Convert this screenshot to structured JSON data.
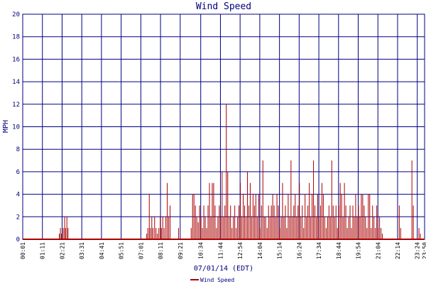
{
  "chart_data": {
    "type": "bar",
    "title": "Wind Speed",
    "xlabel": "07/01/14 (EDT)",
    "ylabel": "MPH",
    "ylim": [
      0,
      20
    ],
    "yticks": [
      0,
      2,
      4,
      6,
      8,
      10,
      12,
      14,
      16,
      18,
      20
    ],
    "xticks": [
      "00:01",
      "01:11",
      "02:21",
      "03:31",
      "04:41",
      "05:51",
      "07:01",
      "08:11",
      "09:21",
      "10:34",
      "11:44",
      "12:54",
      "14:04",
      "15:14",
      "16:24",
      "17:34",
      "18:44",
      "19:54",
      "21:04",
      "22:14",
      "23:24",
      "23:50"
    ],
    "grid": true,
    "legend": {
      "position": "bottom-left",
      "entries": [
        "Wind Speed"
      ]
    },
    "colors": {
      "series": "#aa0000",
      "grid": "#000080",
      "text": "#000080",
      "axis_text": "#000000"
    },
    "series": [
      {
        "name": "Wind Speed",
        "values": [
          {
            "t": "02:11",
            "v": 0.5
          },
          {
            "t": "02:15",
            "v": 1
          },
          {
            "t": "02:19",
            "v": 0.5
          },
          {
            "t": "02:25",
            "v": 1
          },
          {
            "t": "02:30",
            "v": 2
          },
          {
            "t": "02:33",
            "v": 1
          },
          {
            "t": "02:38",
            "v": 2
          },
          {
            "t": "02:42",
            "v": 1
          },
          {
            "t": "07:22",
            "v": 0.5
          },
          {
            "t": "07:26",
            "v": 1
          },
          {
            "t": "07:31",
            "v": 4
          },
          {
            "t": "07:35",
            "v": 1
          },
          {
            "t": "07:40",
            "v": 2
          },
          {
            "t": "07:44",
            "v": 1
          },
          {
            "t": "07:50",
            "v": 2
          },
          {
            "t": "07:55",
            "v": 1
          },
          {
            "t": "08:00",
            "v": 0.5
          },
          {
            "t": "08:05",
            "v": 1
          },
          {
            "t": "08:10",
            "v": 2
          },
          {
            "t": "08:14",
            "v": 1
          },
          {
            "t": "08:19",
            "v": 2
          },
          {
            "t": "08:24",
            "v": 1
          },
          {
            "t": "08:30",
            "v": 2
          },
          {
            "t": "08:35",
            "v": 5
          },
          {
            "t": "08:40",
            "v": 2
          },
          {
            "t": "08:45",
            "v": 3
          },
          {
            "t": "09:15",
            "v": 1
          },
          {
            "t": "10:00",
            "v": 1
          },
          {
            "t": "10:05",
            "v": 4
          },
          {
            "t": "10:10",
            "v": 4
          },
          {
            "t": "10:15",
            "v": 3
          },
          {
            "t": "10:20",
            "v": 2
          },
          {
            "t": "10:25",
            "v": 1.5
          },
          {
            "t": "10:30",
            "v": 3
          },
          {
            "t": "10:35",
            "v": 2
          },
          {
            "t": "10:40",
            "v": 1
          },
          {
            "t": "10:45",
            "v": 3
          },
          {
            "t": "10:50",
            "v": 2
          },
          {
            "t": "10:55",
            "v": 1
          },
          {
            "t": "11:00",
            "v": 3
          },
          {
            "t": "11:05",
            "v": 5
          },
          {
            "t": "11:10",
            "v": 2
          },
          {
            "t": "11:15",
            "v": 5
          },
          {
            "t": "11:20",
            "v": 5
          },
          {
            "t": "11:25",
            "v": 3
          },
          {
            "t": "11:30",
            "v": 1
          },
          {
            "t": "11:35",
            "v": 2
          },
          {
            "t": "11:40",
            "v": 3
          },
          {
            "t": "11:45",
            "v": 2
          },
          {
            "t": "11:50",
            "v": 6
          },
          {
            "t": "11:55",
            "v": 2
          },
          {
            "t": "12:00",
            "v": 3
          },
          {
            "t": "12:05",
            "v": 12
          },
          {
            "t": "12:10",
            "v": 6
          },
          {
            "t": "12:15",
            "v": 2
          },
          {
            "t": "12:20",
            "v": 3
          },
          {
            "t": "12:25",
            "v": 1
          },
          {
            "t": "12:30",
            "v": 2
          },
          {
            "t": "12:35",
            "v": 3
          },
          {
            "t": "12:40",
            "v": 1
          },
          {
            "t": "12:45",
            "v": 2
          },
          {
            "t": "12:50",
            "v": 3
          },
          {
            "t": "12:55",
            "v": 5
          },
          {
            "t": "13:00",
            "v": 2
          },
          {
            "t": "13:05",
            "v": 4
          },
          {
            "t": "13:10",
            "v": 3
          },
          {
            "t": "13:15",
            "v": 2
          },
          {
            "t": "13:20",
            "v": 6
          },
          {
            "t": "13:25",
            "v": 3
          },
          {
            "t": "13:30",
            "v": 5
          },
          {
            "t": "13:35",
            "v": 2
          },
          {
            "t": "13:40",
            "v": 4
          },
          {
            "t": "13:45",
            "v": 3
          },
          {
            "t": "13:50",
            "v": 4
          },
          {
            "t": "13:55",
            "v": 2
          },
          {
            "t": "14:00",
            "v": 4
          },
          {
            "t": "14:05",
            "v": 1
          },
          {
            "t": "14:10",
            "v": 3
          },
          {
            "t": "14:15",
            "v": 7
          },
          {
            "t": "14:20",
            "v": 2
          },
          {
            "t": "14:25",
            "v": 2
          },
          {
            "t": "14:30",
            "v": 1
          },
          {
            "t": "14:35",
            "v": 3
          },
          {
            "t": "14:40",
            "v": 2
          },
          {
            "t": "14:45",
            "v": 3
          },
          {
            "t": "14:50",
            "v": 4
          },
          {
            "t": "14:55",
            "v": 3
          },
          {
            "t": "15:00",
            "v": 2
          },
          {
            "t": "15:05",
            "v": 4
          },
          {
            "t": "15:10",
            "v": 3
          },
          {
            "t": "15:15",
            "v": 1
          },
          {
            "t": "15:20",
            "v": 2
          },
          {
            "t": "15:25",
            "v": 5
          },
          {
            "t": "15:30",
            "v": 2
          },
          {
            "t": "15:35",
            "v": 3
          },
          {
            "t": "15:40",
            "v": 1
          },
          {
            "t": "15:45",
            "v": 4
          },
          {
            "t": "15:50",
            "v": 2
          },
          {
            "t": "15:55",
            "v": 7
          },
          {
            "t": "16:00",
            "v": 2
          },
          {
            "t": "16:05",
            "v": 3
          },
          {
            "t": "16:10",
            "v": 4
          },
          {
            "t": "16:15",
            "v": 2
          },
          {
            "t": "16:20",
            "v": 3
          },
          {
            "t": "16:25",
            "v": 5
          },
          {
            "t": "16:30",
            "v": 2
          },
          {
            "t": "16:35",
            "v": 3
          },
          {
            "t": "16:40",
            "v": 1
          },
          {
            "t": "16:45",
            "v": 4
          },
          {
            "t": "16:50",
            "v": 2
          },
          {
            "t": "16:55",
            "v": 3
          },
          {
            "t": "17:00",
            "v": 5
          },
          {
            "t": "17:05",
            "v": 2
          },
          {
            "t": "17:10",
            "v": 4
          },
          {
            "t": "17:15",
            "v": 7
          },
          {
            "t": "17:20",
            "v": 3
          },
          {
            "t": "17:25",
            "v": 2
          },
          {
            "t": "17:30",
            "v": 4
          },
          {
            "t": "17:35",
            "v": 2
          },
          {
            "t": "17:40",
            "v": 3
          },
          {
            "t": "17:45",
            "v": 5
          },
          {
            "t": "17:50",
            "v": 4
          },
          {
            "t": "17:55",
            "v": 2
          },
          {
            "t": "18:00",
            "v": 1
          },
          {
            "t": "18:05",
            "v": 2
          },
          {
            "t": "18:10",
            "v": 3
          },
          {
            "t": "18:15",
            "v": 2
          },
          {
            "t": "18:20",
            "v": 7
          },
          {
            "t": "18:25",
            "v": 3
          },
          {
            "t": "18:30",
            "v": 2
          },
          {
            "t": "18:35",
            "v": 3
          },
          {
            "t": "18:40",
            "v": 1
          },
          {
            "t": "18:45",
            "v": 3
          },
          {
            "t": "18:50",
            "v": 5
          },
          {
            "t": "18:55",
            "v": 4
          },
          {
            "t": "19:00",
            "v": 2
          },
          {
            "t": "19:05",
            "v": 5
          },
          {
            "t": "19:10",
            "v": 3
          },
          {
            "t": "19:15",
            "v": 1
          },
          {
            "t": "19:20",
            "v": 2
          },
          {
            "t": "19:25",
            "v": 3
          },
          {
            "t": "19:30",
            "v": 1
          },
          {
            "t": "19:35",
            "v": 3
          },
          {
            "t": "19:40",
            "v": 2
          },
          {
            "t": "19:45",
            "v": 4
          },
          {
            "t": "19:50",
            "v": 2
          },
          {
            "t": "19:55",
            "v": 3
          },
          {
            "t": "20:00",
            "v": 2
          },
          {
            "t": "20:05",
            "v": 4
          },
          {
            "t": "20:10",
            "v": 4
          },
          {
            "t": "20:15",
            "v": 3
          },
          {
            "t": "20:20",
            "v": 2
          },
          {
            "t": "20:25",
            "v": 1
          },
          {
            "t": "20:30",
            "v": 4
          },
          {
            "t": "20:35",
            "v": 4
          },
          {
            "t": "20:40",
            "v": 1
          },
          {
            "t": "20:45",
            "v": 3
          },
          {
            "t": "20:50",
            "v": 2
          },
          {
            "t": "20:55",
            "v": 1
          },
          {
            "t": "21:00",
            "v": 3
          },
          {
            "t": "21:05",
            "v": 1
          },
          {
            "t": "21:10",
            "v": 2
          },
          {
            "t": "21:15",
            "v": 1
          },
          {
            "t": "21:20",
            "v": 0.5
          },
          {
            "t": "22:20",
            "v": 3
          },
          {
            "t": "22:25",
            "v": 1
          },
          {
            "t": "23:05",
            "v": 7
          },
          {
            "t": "23:10",
            "v": 3
          },
          {
            "t": "23:30",
            "v": 1
          },
          {
            "t": "23:35",
            "v": 0.5
          }
        ]
      }
    ]
  }
}
